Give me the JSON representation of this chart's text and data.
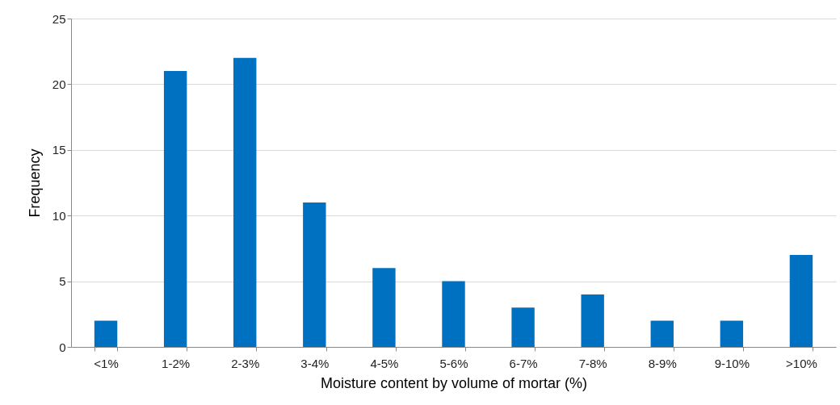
{
  "chart_data": {
    "type": "bar",
    "xlabel": "Moisture content by volume of mortar (%)",
    "ylabel": "Frequency",
    "categories": [
      "<1%",
      "1-2%",
      "2-3%",
      "3-4%",
      "4-5%",
      "5-6%",
      "6-7%",
      "7-8%",
      "8-9%",
      "9-10%",
      ">10%"
    ],
    "values": [
      2,
      21,
      22,
      11,
      6,
      5,
      3,
      4,
      2,
      2,
      7
    ],
    "color": "#0070c0",
    "ylim": [
      0,
      25
    ],
    "yticks": [
      0,
      5,
      10,
      15,
      20,
      25
    ],
    "grid": "y"
  }
}
